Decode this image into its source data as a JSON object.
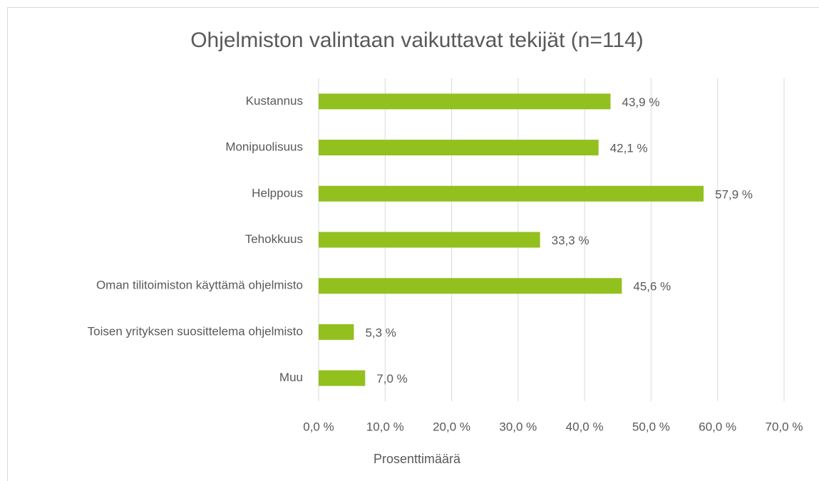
{
  "chart_data": {
    "type": "bar",
    "orientation": "horizontal",
    "title": "Ohjelmiston valintaan vaikuttavat tekijät (n=114)",
    "x_label": "Prosenttimäärä",
    "categories": [
      "Kustannus",
      "Monipuolisuus",
      "Helppous",
      "Tehokkuus",
      "Oman tilitoimiston käyttämä ohjelmisto",
      "Toisen yrityksen suosittelema ohjelmisto",
      "Muu"
    ],
    "values": [
      43.9,
      42.1,
      57.9,
      33.3,
      45.6,
      5.3,
      7.0
    ],
    "value_labels": [
      "43,9 %",
      "42,1 %",
      "57,9 %",
      "33,3 %",
      "45,6 %",
      "5,3 %",
      "7,0 %"
    ],
    "color": "#92c01f",
    "xlim": [
      0,
      70
    ],
    "xticks": [
      {
        "value": 0,
        "label": "0,0 %"
      },
      {
        "value": 10,
        "label": "10,0 %"
      },
      {
        "value": 20,
        "label": "20,0 %"
      },
      {
        "value": 30,
        "label": "30,0 %"
      },
      {
        "value": 40,
        "label": "40,0 %"
      },
      {
        "value": 50,
        "label": "50,0 %"
      },
      {
        "value": 60,
        "label": "60,0 %"
      },
      {
        "value": 70,
        "label": "70,0 %"
      }
    ],
    "grid": true
  }
}
